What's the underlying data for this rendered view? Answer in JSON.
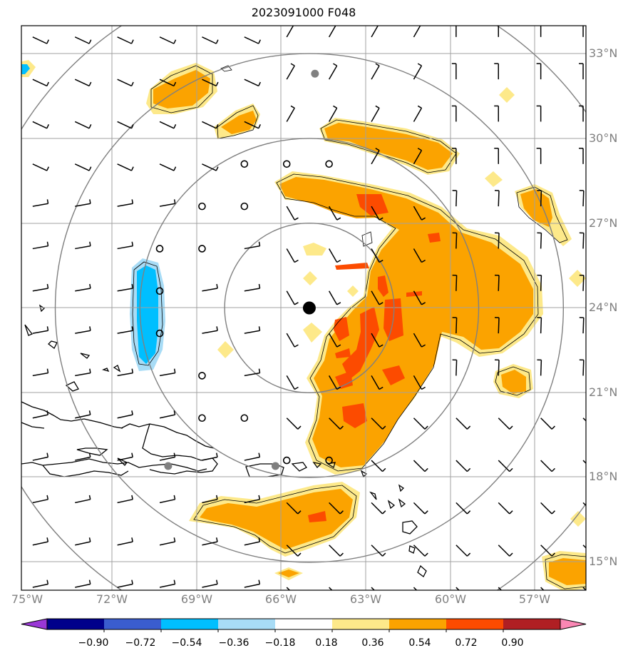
{
  "title": "2023091000 F048",
  "colors": {
    "land_outline": "#000000",
    "grid": "#a0a0a0",
    "rings": "#808080",
    "ring_points": "#808080",
    "center": "#000000",
    "light_yellow": "#fde98a",
    "orange": "#fba300",
    "red_orange": "#fc4b00",
    "light_blue": "#a8dcf6",
    "deep_sky": "#00bfff"
  },
  "map": {
    "lon_ticks": [
      "75°W",
      "72°W",
      "69°W",
      "66°W",
      "63°W",
      "60°W",
      "57°W"
    ],
    "lat_ticks": [
      "33°N",
      "30°N",
      "27°N",
      "24°N",
      "21°N",
      "18°N",
      "15°N"
    ],
    "extent": {
      "lon_min": -75,
      "lon_max": -55,
      "lat_min": 14,
      "lat_max": 34
    },
    "storm_center": {
      "lon": -64.8,
      "lat": 24.0
    },
    "ring_radii_deg": [
      3,
      6,
      9,
      12
    ],
    "ring_markers": [
      {
        "lon": -64.6,
        "lat": 32.3
      },
      {
        "lon": -69.8,
        "lat": 18.4
      },
      {
        "lon": -66.0,
        "lat": 18.4
      }
    ]
  },
  "colorbar": {
    "labels": [
      "−0.90",
      "−0.72",
      "−0.54",
      "−0.36",
      "−0.18",
      "0.18",
      "0.36",
      "0.54",
      "0.72",
      "0.90"
    ],
    "colors": [
      "#9a37d6",
      "#00008b",
      "#3a5dcf",
      "#00bfff",
      "#a8dcf6",
      "#ffffff",
      "#fde98a",
      "#fba300",
      "#fc4b00",
      "#b01f23",
      "#fa87b4"
    ]
  }
}
